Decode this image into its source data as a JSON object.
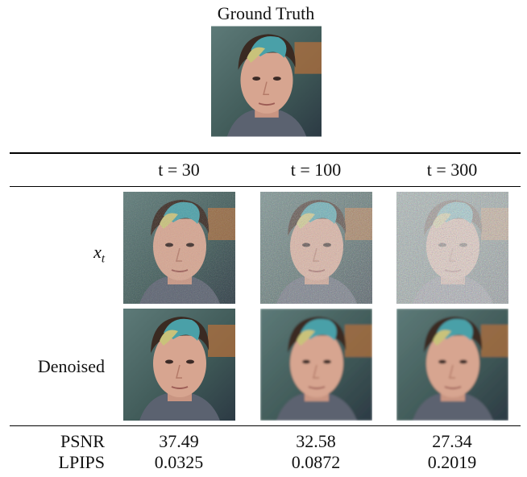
{
  "figure": {
    "title": "Ground Truth",
    "columns": [
      "t = 30",
      "t = 100",
      "t = 300"
    ],
    "rows": [
      {
        "label": {
          "symbol": "x",
          "subscript": "t"
        }
      },
      {
        "label": "Denoised"
      }
    ],
    "metrics": [
      {
        "name": "PSNR",
        "values": [
          "37.49",
          "32.58",
          "27.34"
        ]
      },
      {
        "name": "LPIPS",
        "values": [
          "0.0325",
          "0.0872",
          "0.2019"
        ]
      }
    ]
  }
}
